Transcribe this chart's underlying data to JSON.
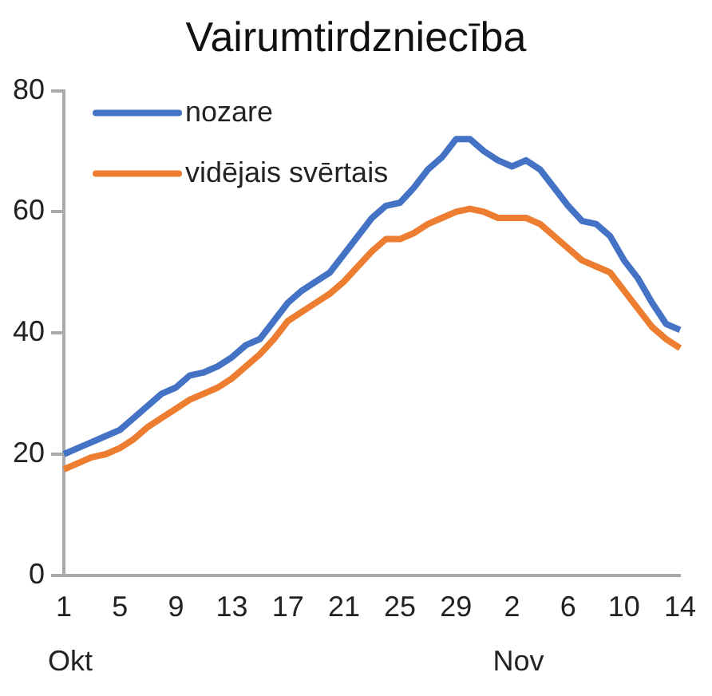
{
  "chart_data": {
    "type": "line",
    "title": "Vairumtirdzniecība",
    "categories": [
      "1",
      null,
      null,
      null,
      "5",
      null,
      null,
      null,
      "9",
      null,
      null,
      null,
      "13",
      null,
      null,
      null,
      "17",
      null,
      null,
      null,
      "21",
      null,
      null,
      null,
      "25",
      null,
      null,
      null,
      "29",
      null,
      null,
      null,
      "2",
      null,
      null,
      null,
      "6",
      null,
      null,
      null,
      "10",
      null,
      null,
      null,
      "14"
    ],
    "series": [
      {
        "name": "nozare",
        "color": "#4472c4",
        "values": [
          20,
          21,
          22,
          23,
          24,
          26,
          28,
          30,
          31,
          33,
          33.5,
          34.5,
          36,
          38,
          39,
          42,
          45,
          47,
          48.5,
          50,
          53,
          56,
          59,
          61,
          61.5,
          64,
          67,
          69,
          72,
          72,
          70,
          68.5,
          67.5,
          68.5,
          67,
          64,
          61,
          58.5,
          58,
          56,
          52,
          49,
          45,
          41.5,
          40.5
        ]
      },
      {
        "name": "vidējais svērtais",
        "color": "#ed7d31",
        "values": [
          17.5,
          18.5,
          19.5,
          20,
          21,
          22.5,
          24.5,
          26,
          27.5,
          29,
          30,
          31,
          32.5,
          34.5,
          36.5,
          39,
          42,
          43.5,
          45,
          46.5,
          48.5,
          51,
          53.5,
          55.5,
          55.5,
          56.5,
          58,
          59,
          60,
          60.5,
          60,
          59,
          59,
          59,
          58,
          56,
          54,
          52,
          51,
          50,
          47,
          44,
          41,
          39,
          37.5
        ]
      }
    ],
    "ylim": [
      0,
      80
    ],
    "yticks": [
      0,
      20,
      40,
      60,
      80
    ],
    "grid": false,
    "legend": "top left",
    "marker": "none",
    "line_style": "solid",
    "annotations": [
      "Okt",
      "Nov"
    ]
  }
}
